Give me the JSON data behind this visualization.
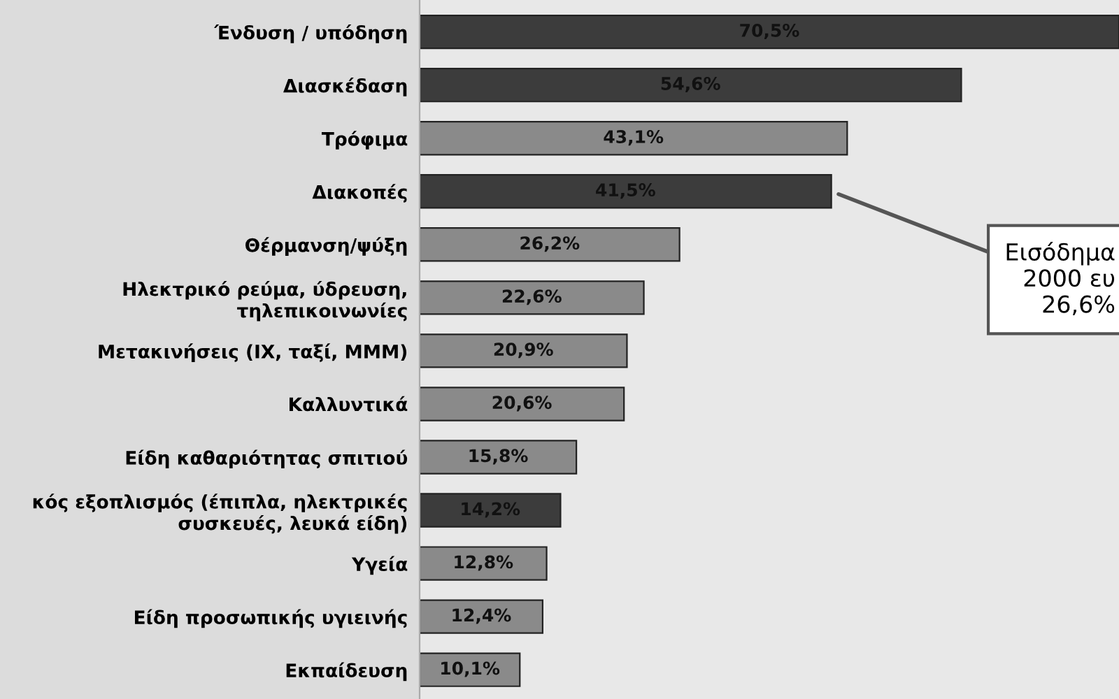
{
  "chart_data": {
    "type": "bar",
    "orientation": "horizontal",
    "categories": [
      "Ένδυση / υπόδηση",
      "Διασκέδαση",
      "Τρόφιμα",
      "Διακοπές",
      "Θέρμανση/ψύξη",
      "Ηλεκτρικό ρεύμα, ύδρευση,\nτηλεπικοινωνίες",
      "Μετακινήσεις (ΙΧ, ταξί, ΜΜΜ)",
      "Καλλυντικά",
      "Είδη καθαριότητας σπιτιού",
      "κός εξοπλισμός (έπιπλα, ηλεκτρικές\nσυσκευές, λευκά είδη)",
      "Υγεία",
      "Είδη προσωπικής υγιεινής",
      "Εκπαίδευση"
    ],
    "values": [
      70.5,
      54.6,
      43.1,
      41.5,
      26.2,
      22.6,
      20.9,
      20.6,
      15.8,
      14.2,
      12.8,
      12.4,
      10.1
    ],
    "value_labels": [
      "70,5%",
      "54,6%",
      "43,1%",
      "41,5%",
      "26,2%",
      "22,6%",
      "20,9%",
      "20,6%",
      "15,8%",
      "14,2%",
      "12,8%",
      "12,4%",
      "10,1%"
    ],
    "colors": [
      "#3c3c3c",
      "#3c3c3c",
      "#8a8a8a",
      "#3c3c3c",
      "#8a8a8a",
      "#8a8a8a",
      "#8a8a8a",
      "#8a8a8a",
      "#8a8a8a",
      "#3c3c3c",
      "#8a8a8a",
      "#8a8a8a",
      "#8a8a8a"
    ],
    "annotations": [
      {
        "text": "Εισόδημα\n2000 ευ\n26,6%",
        "x": 41.5,
        "y": "Διακοπές"
      }
    ]
  }
}
